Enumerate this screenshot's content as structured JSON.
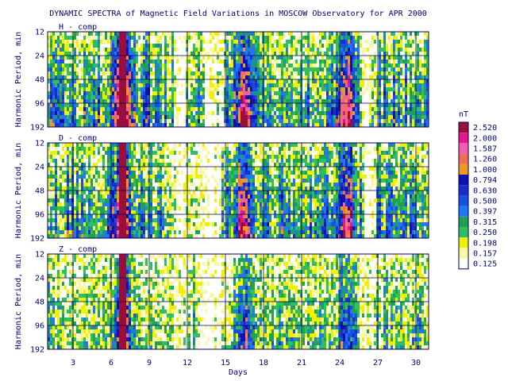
{
  "chart_data": {
    "type": "heatmap",
    "title": "DYNAMIC SPECTRA of Magnetic Field Variations in MOSCOW Observatory for APR 2000",
    "xlabel": "Days",
    "ylabel": "Harmonic Period, min",
    "x_ticks": [
      3,
      6,
      9,
      12,
      15,
      18,
      21,
      24,
      27,
      30
    ],
    "x_range": [
      1,
      31
    ],
    "y_ticks": [
      12,
      24,
      48,
      96,
      192
    ],
    "y_scale": "log2",
    "y_range": [
      12,
      192
    ],
    "panels": [
      {
        "label": "H - comp"
      },
      {
        "label": "D - comp"
      },
      {
        "label": "Z - comp"
      }
    ],
    "colorbar": {
      "unit": "nT",
      "levels": [
        "2.520",
        "2.000",
        "1.587",
        "1.260",
        "1.000",
        "0.794",
        "0.630",
        "0.500",
        "0.397",
        "0.315",
        "0.250",
        "0.198",
        "0.157",
        "0.125"
      ],
      "colors": [
        "#9a0f3a",
        "#e0188a",
        "#f060b0",
        "#f07050",
        "#f09a20",
        "#1010b0",
        "#1c2ec8",
        "#1a50e0",
        "#2078f0",
        "#20a050",
        "#2ec060",
        "#f0f000",
        "#f8f8a0",
        "#ffffff"
      ]
    },
    "grid": true,
    "features": {
      "storm_day": 6.9,
      "active_days": [
        6.9,
        16.5,
        24.5
      ],
      "quiet_days": [
        11.5,
        13.5,
        14.3,
        26.2
      ]
    }
  }
}
